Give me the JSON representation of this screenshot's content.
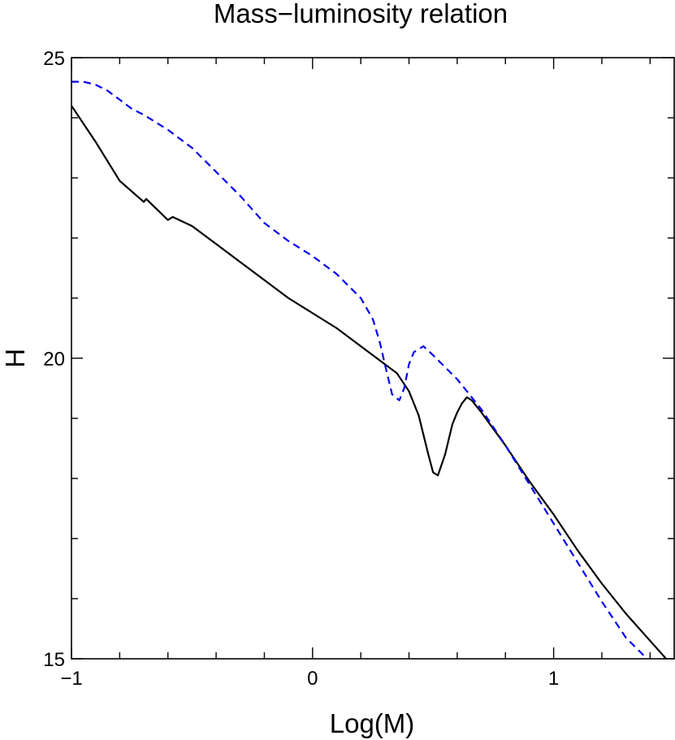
{
  "chart_data": {
    "type": "line",
    "title": "Mass−luminosity relation",
    "xlabel": "Log(M)",
    "ylabel": "H",
    "xlim": [
      -1,
      1.5
    ],
    "ylim": [
      15,
      25
    ],
    "x_ticks": [
      -1,
      0,
      1
    ],
    "x_tick_labels": [
      "−1",
      "0",
      "1"
    ],
    "y_ticks": [
      15,
      20,
      25
    ],
    "y_tick_labels": [
      "15",
      "20",
      "25"
    ],
    "grid": false,
    "legend": null,
    "series": [
      {
        "style": "solid",
        "color": "#000000",
        "x": [
          -1.0,
          -0.9,
          -0.8,
          -0.7,
          -0.69,
          -0.6,
          -0.58,
          -0.5,
          -0.45,
          -0.4,
          -0.3,
          -0.2,
          -0.1,
          0.0,
          0.1,
          0.2,
          0.3,
          0.35,
          0.4,
          0.44,
          0.48,
          0.5,
          0.52,
          0.55,
          0.58,
          0.6,
          0.62,
          0.64,
          0.66,
          0.7,
          0.8,
          0.9,
          1.0,
          1.1,
          1.2,
          1.3,
          1.4,
          1.5
        ],
        "y": [
          24.2,
          23.6,
          22.95,
          22.6,
          22.65,
          22.3,
          22.35,
          22.2,
          22.05,
          21.9,
          21.6,
          21.3,
          21.0,
          20.75,
          20.5,
          20.2,
          19.9,
          19.75,
          19.45,
          19.05,
          18.4,
          18.1,
          18.05,
          18.4,
          18.9,
          19.1,
          19.25,
          19.35,
          19.3,
          19.1,
          18.55,
          17.95,
          17.4,
          16.8,
          16.25,
          15.75,
          15.3,
          14.85
        ]
      },
      {
        "style": "dashed",
        "color": "#0000ee",
        "x": [
          -1.0,
          -0.95,
          -0.9,
          -0.85,
          -0.8,
          -0.75,
          -0.7,
          -0.6,
          -0.5,
          -0.4,
          -0.3,
          -0.2,
          -0.1,
          0.0,
          0.1,
          0.2,
          0.25,
          0.28,
          0.3,
          0.33,
          0.36,
          0.38,
          0.4,
          0.42,
          0.46,
          0.5,
          0.6,
          0.7,
          0.8,
          0.9,
          1.0,
          1.1,
          1.2,
          1.3,
          1.4,
          1.5
        ],
        "y": [
          24.6,
          24.6,
          24.55,
          24.45,
          24.3,
          24.15,
          24.05,
          23.8,
          23.5,
          23.1,
          22.7,
          22.25,
          21.95,
          21.7,
          21.4,
          21.0,
          20.65,
          20.25,
          19.9,
          19.4,
          19.3,
          19.5,
          19.9,
          20.1,
          20.2,
          20.05,
          19.65,
          19.15,
          18.55,
          17.9,
          17.25,
          16.6,
          15.95,
          15.35,
          14.95,
          14.45
        ]
      }
    ]
  }
}
